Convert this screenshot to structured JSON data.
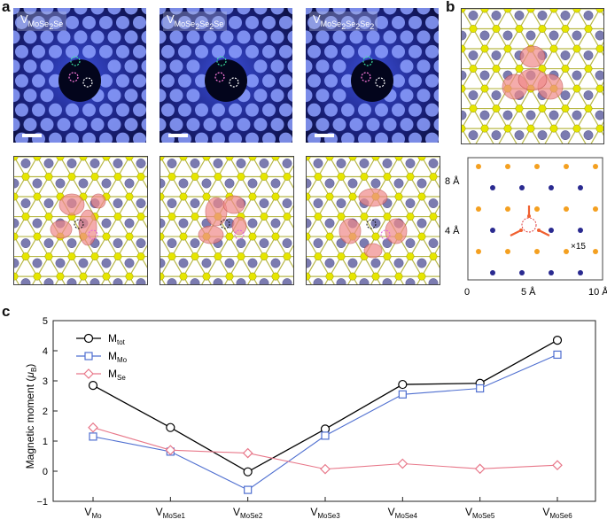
{
  "panel_labels": {
    "a": "a",
    "b": "b",
    "c": "c"
  },
  "stm_panels": [
    {
      "main": "V",
      "sub": "MoSe",
      "tail_main": "",
      "tail_sub": "",
      "text_after": "Se",
      "label_full": "V MoSe2Se"
    },
    {
      "main": "V",
      "sub": "MoSe",
      "text_after": "Se",
      "label_full": "V MoSe2Se2Se"
    },
    {
      "main": "V",
      "sub": "MoSe",
      "text_after": "",
      "label_full": "V MoSe2Se2Se2"
    }
  ],
  "stm_label_parts": [
    [
      "V",
      "MoSe",
      "2",
      "Se"
    ],
    [
      "V",
      "MoSe",
      "2",
      "Se",
      "2",
      "Se"
    ],
    [
      "V",
      "MoSe",
      "2",
      "Se",
      "2",
      "Se",
      "2"
    ]
  ],
  "panel_b": {
    "y_ticks": [
      "8 Å",
      "4 Å"
    ],
    "x_ticks": [
      "0",
      "5 Å",
      "10 Å"
    ],
    "annotation": "×15"
  },
  "colors": {
    "m_tot": "#000000",
    "m_mo": "#4f6fd0",
    "m_se": "#e8788a",
    "se_atom": "#e6e600",
    "mo_atom": "#7b7bb0",
    "spin_density": "#f08a8a"
  },
  "chart_data": {
    "type": "line",
    "categories": [
      "V_Mo",
      "V_MoSe1",
      "V_MoSe2",
      "V_MoSe3",
      "V_MoSe4",
      "V_MoSe5",
      "V_MoSe6"
    ],
    "category_main": [
      "V",
      "V",
      "V",
      "V",
      "V",
      "V",
      "V"
    ],
    "category_sub": [
      "Mo",
      "MoSe1",
      "MoSe2",
      "MoSe3",
      "MoSe4",
      "MoSe5",
      "MoSe6"
    ],
    "series": [
      {
        "name": "M_tot",
        "name_main": "M",
        "name_sub": "tot",
        "marker": "circle",
        "values": [
          2.85,
          1.45,
          -0.02,
          1.4,
          2.88,
          2.92,
          4.35
        ]
      },
      {
        "name": "M_Mo",
        "name_main": "M",
        "name_sub": "Mo",
        "marker": "square",
        "values": [
          1.15,
          0.65,
          -0.62,
          1.18,
          2.55,
          2.75,
          3.87
        ]
      },
      {
        "name": "M_Se",
        "name_main": "M",
        "name_sub": "Se",
        "marker": "diamond",
        "values": [
          1.45,
          0.7,
          0.6,
          0.07,
          0.25,
          0.08,
          0.2
        ]
      }
    ],
    "ylabel_parts": [
      "Magnetic moment (",
      "μ",
      "B",
      ")"
    ],
    "ylim": [
      -1,
      5
    ],
    "yticks": [
      "−1",
      "0",
      "1",
      "2",
      "3",
      "4",
      "5"
    ],
    "legend_position": "top-left",
    "grid": false
  }
}
